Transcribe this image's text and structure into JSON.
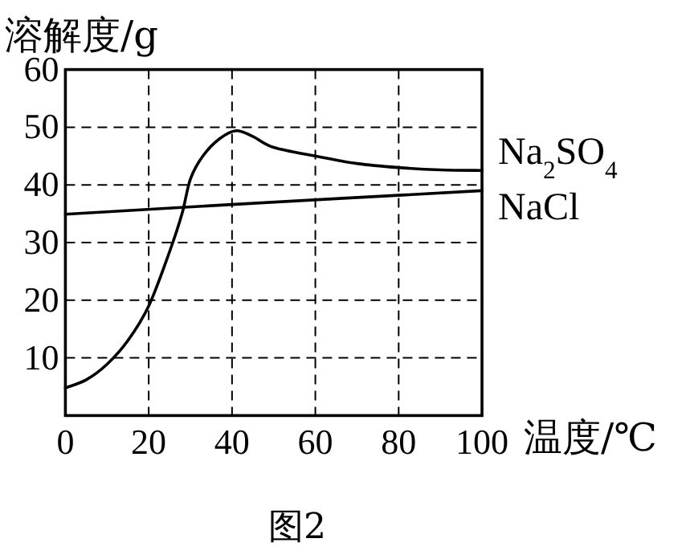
{
  "chart_data": {
    "type": "line",
    "ylabel": "溶解度/g",
    "xlabel": "温度/℃",
    "annotations": [
      "图2"
    ],
    "xlim": [
      0,
      100
    ],
    "ylim": [
      0,
      60
    ],
    "xticks": [
      0,
      20,
      40,
      60,
      80,
      100
    ],
    "yticks": [
      10,
      20,
      30,
      40,
      50,
      60
    ],
    "grid": true,
    "line_style": "solid",
    "marker": "none",
    "series": [
      {
        "name": "Na$_{2}$SO$_{4}$",
        "color": "#000000",
        "x": [
          0,
          5,
          10,
          15,
          20,
          25,
          28,
          30,
          33,
          37,
          41,
          45,
          50,
          60,
          70,
          80,
          90,
          100
        ],
        "values": [
          4.8,
          6.2,
          8.9,
          13,
          19,
          28.4,
          35,
          41,
          45,
          48,
          49.4,
          48.4,
          46.5,
          45,
          43.7,
          43,
          42.6,
          42.5
        ]
      },
      {
        "name": "NaCl",
        "color": "#000000",
        "x": [
          0,
          40,
          100
        ],
        "values": [
          34.9,
          36.6,
          39
        ]
      }
    ]
  }
}
